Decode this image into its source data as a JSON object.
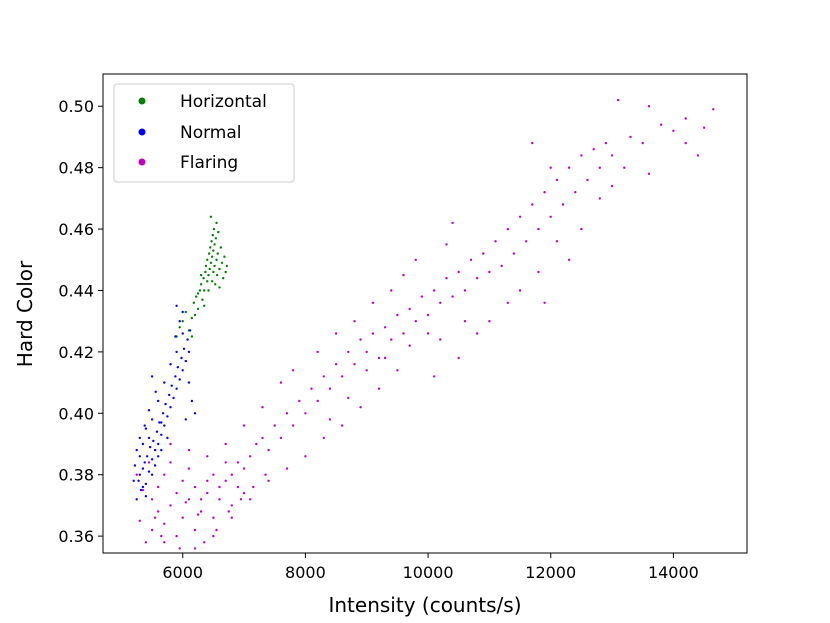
{
  "chart_data": {
    "type": "scatter",
    "title": "",
    "xlabel": "Intensity (counts/s)",
    "ylabel": "Hard Color",
    "xlim": [
      4700,
      15200
    ],
    "ylim": [
      0.3545,
      0.5105
    ],
    "xticks": [
      6000,
      8000,
      10000,
      12000,
      14000
    ],
    "xtick_labels": [
      "6000",
      "8000",
      "10000",
      "12000",
      "14000"
    ],
    "yticks": [
      0.36,
      0.38,
      0.4,
      0.42,
      0.44,
      0.46,
      0.48,
      0.5
    ],
    "ytick_labels": [
      "0.36",
      "0.38",
      "0.40",
      "0.42",
      "0.44",
      "0.46",
      "0.48",
      "0.50"
    ],
    "grid": false,
    "legend_position": "top-left",
    "series": [
      {
        "name": "Horizontal",
        "color": "#008000",
        "points": [
          [
            5900,
            0.425
          ],
          [
            5950,
            0.428
          ],
          [
            6000,
            0.43
          ],
          [
            6050,
            0.433
          ],
          [
            6100,
            0.427
          ],
          [
            6150,
            0.431
          ],
          [
            6180,
            0.436
          ],
          [
            6220,
            0.438
          ],
          [
            6250,
            0.434
          ],
          [
            6280,
            0.44
          ],
          [
            6300,
            0.442
          ],
          [
            6320,
            0.437
          ],
          [
            6340,
            0.444
          ],
          [
            6350,
            0.44
          ],
          [
            6370,
            0.446
          ],
          [
            6380,
            0.448
          ],
          [
            6400,
            0.443
          ],
          [
            6400,
            0.45
          ],
          [
            6420,
            0.445
          ],
          [
            6430,
            0.452
          ],
          [
            6440,
            0.447
          ],
          [
            6450,
            0.454
          ],
          [
            6460,
            0.449
          ],
          [
            6470,
            0.456
          ],
          [
            6480,
            0.451
          ],
          [
            6490,
            0.458
          ],
          [
            6500,
            0.446
          ],
          [
            6500,
            0.453
          ],
          [
            6510,
            0.46
          ],
          [
            6520,
            0.448
          ],
          [
            6520,
            0.455
          ],
          [
            6530,
            0.442
          ],
          [
            6540,
            0.457
          ],
          [
            6550,
            0.45
          ],
          [
            6560,
            0.445
          ],
          [
            6570,
            0.452
          ],
          [
            6580,
            0.459
          ],
          [
            6600,
            0.447
          ],
          [
            6620,
            0.454
          ],
          [
            6640,
            0.449
          ],
          [
            6660,
            0.444
          ],
          [
            6680,
            0.451
          ],
          [
            6700,
            0.446
          ],
          [
            6720,
            0.448
          ],
          [
            6460,
            0.464
          ],
          [
            6550,
            0.462
          ],
          [
            6350,
            0.435
          ],
          [
            6300,
            0.445
          ],
          [
            6420,
            0.44
          ],
          [
            6480,
            0.443
          ],
          [
            6600,
            0.441
          ],
          [
            6250,
            0.439
          ],
          [
            6150,
            0.425
          ],
          [
            6200,
            0.432
          ]
        ]
      },
      {
        "name": "Normal",
        "color": "#0000ff",
        "points": [
          [
            5250,
            0.372
          ],
          [
            5280,
            0.378
          ],
          [
            5300,
            0.38
          ],
          [
            5320,
            0.375
          ],
          [
            5350,
            0.382
          ],
          [
            5380,
            0.384
          ],
          [
            5400,
            0.377
          ],
          [
            5420,
            0.386
          ],
          [
            5450,
            0.381
          ],
          [
            5470,
            0.389
          ],
          [
            5500,
            0.385
          ],
          [
            5520,
            0.391
          ],
          [
            5550,
            0.388
          ],
          [
            5580,
            0.394
          ],
          [
            5600,
            0.39
          ],
          [
            5620,
            0.397
          ],
          [
            5650,
            0.393
          ],
          [
            5680,
            0.4
          ],
          [
            5700,
            0.396
          ],
          [
            5720,
            0.403
          ],
          [
            5750,
            0.399
          ],
          [
            5780,
            0.406
          ],
          [
            5800,
            0.402
          ],
          [
            5820,
            0.409
          ],
          [
            5850,
            0.405
          ],
          [
            5880,
            0.412
          ],
          [
            5900,
            0.408
          ],
          [
            5920,
            0.415
          ],
          [
            5950,
            0.411
          ],
          [
            5980,
            0.418
          ],
          [
            6000,
            0.414
          ],
          [
            6020,
            0.421
          ],
          [
            6050,
            0.417
          ],
          [
            6080,
            0.424
          ],
          [
            6100,
            0.42
          ],
          [
            6120,
            0.427
          ],
          [
            5880,
            0.425
          ],
          [
            5950,
            0.43
          ],
          [
            6000,
            0.433
          ],
          [
            5900,
            0.435
          ],
          [
            5400,
            0.395
          ],
          [
            5450,
            0.401
          ],
          [
            5300,
            0.386
          ],
          [
            5200,
            0.378
          ],
          [
            5220,
            0.383
          ],
          [
            5350,
            0.39
          ],
          [
            5500,
            0.398
          ],
          [
            5600,
            0.404
          ],
          [
            5700,
            0.41
          ],
          [
            5800,
            0.416
          ],
          [
            5900,
            0.42
          ],
          [
            6000,
            0.426
          ],
          [
            5500,
            0.38
          ],
          [
            5550,
            0.383
          ],
          [
            5600,
            0.386
          ],
          [
            5650,
            0.388
          ],
          [
            5350,
            0.376
          ],
          [
            5400,
            0.373
          ],
          [
            5250,
            0.388
          ],
          [
            5300,
            0.392
          ],
          [
            6150,
            0.404
          ],
          [
            6200,
            0.4
          ],
          [
            6100,
            0.41
          ],
          [
            6050,
            0.398
          ],
          [
            5750,
            0.392
          ],
          [
            5650,
            0.397
          ],
          [
            5450,
            0.392
          ],
          [
            5380,
            0.396
          ],
          [
            5560,
            0.407
          ],
          [
            5500,
            0.412
          ]
        ]
      },
      {
        "name": "Flaring",
        "color": "#c000c0",
        "points": [
          [
            5300,
            0.365
          ],
          [
            5400,
            0.358
          ],
          [
            5500,
            0.362
          ],
          [
            5600,
            0.368
          ],
          [
            5700,
            0.364
          ],
          [
            5800,
            0.37
          ],
          [
            5900,
            0.36
          ],
          [
            6000,
            0.366
          ],
          [
            6100,
            0.372
          ],
          [
            6200,
            0.362
          ],
          [
            6300,
            0.368
          ],
          [
            6400,
            0.374
          ],
          [
            6500,
            0.366
          ],
          [
            6600,
            0.372
          ],
          [
            6700,
            0.378
          ],
          [
            6800,
            0.37
          ],
          [
            6900,
            0.376
          ],
          [
            7000,
            0.382
          ],
          [
            5500,
            0.372
          ],
          [
            5600,
            0.376
          ],
          [
            5700,
            0.38
          ],
          [
            5800,
            0.384
          ],
          [
            5900,
            0.374
          ],
          [
            6000,
            0.378
          ],
          [
            6100,
            0.382
          ],
          [
            6200,
            0.376
          ],
          [
            6300,
            0.372
          ],
          [
            6400,
            0.378
          ],
          [
            6500,
            0.38
          ],
          [
            6600,
            0.376
          ],
          [
            6700,
            0.384
          ],
          [
            6800,
            0.38
          ],
          [
            6900,
            0.384
          ],
          [
            7000,
            0.374
          ],
          [
            7100,
            0.386
          ],
          [
            7200,
            0.39
          ],
          [
            7300,
            0.392
          ],
          [
            7400,
            0.388
          ],
          [
            7500,
            0.396
          ],
          [
            7600,
            0.392
          ],
          [
            7700,
            0.4
          ],
          [
            7800,
            0.396
          ],
          [
            7900,
            0.404
          ],
          [
            8000,
            0.4
          ],
          [
            8100,
            0.408
          ],
          [
            8200,
            0.404
          ],
          [
            8300,
            0.412
          ],
          [
            8400,
            0.408
          ],
          [
            8500,
            0.416
          ],
          [
            8600,
            0.412
          ],
          [
            8700,
            0.42
          ],
          [
            8800,
            0.416
          ],
          [
            8900,
            0.424
          ],
          [
            9000,
            0.42
          ],
          [
            9100,
            0.426
          ],
          [
            9200,
            0.418
          ],
          [
            9300,
            0.428
          ],
          [
            9400,
            0.424
          ],
          [
            9500,
            0.432
          ],
          [
            9600,
            0.426
          ],
          [
            9700,
            0.434
          ],
          [
            9800,
            0.43
          ],
          [
            9900,
            0.438
          ],
          [
            10000,
            0.432
          ],
          [
            10100,
            0.44
          ],
          [
            10200,
            0.436
          ],
          [
            10300,
            0.444
          ],
          [
            10400,
            0.438
          ],
          [
            10500,
            0.446
          ],
          [
            10600,
            0.44
          ],
          [
            10700,
            0.45
          ],
          [
            10800,
            0.444
          ],
          [
            10900,
            0.452
          ],
          [
            11000,
            0.446
          ],
          [
            11100,
            0.456
          ],
          [
            11200,
            0.448
          ],
          [
            11300,
            0.46
          ],
          [
            11400,
            0.452
          ],
          [
            11500,
            0.464
          ],
          [
            11600,
            0.456
          ],
          [
            11700,
            0.468
          ],
          [
            11800,
            0.46
          ],
          [
            11900,
            0.472
          ],
          [
            12000,
            0.464
          ],
          [
            12100,
            0.476
          ],
          [
            12200,
            0.468
          ],
          [
            12300,
            0.48
          ],
          [
            12400,
            0.472
          ],
          [
            12500,
            0.484
          ],
          [
            12600,
            0.476
          ],
          [
            12700,
            0.486
          ],
          [
            12800,
            0.48
          ],
          [
            12900,
            0.488
          ],
          [
            13000,
            0.484
          ],
          [
            13100,
            0.502
          ],
          [
            13300,
            0.49
          ],
          [
            13500,
            0.488
          ],
          [
            13600,
            0.5
          ],
          [
            13800,
            0.494
          ],
          [
            14000,
            0.492
          ],
          [
            14200,
            0.496
          ],
          [
            14400,
            0.484
          ],
          [
            14500,
            0.493
          ],
          [
            14650,
            0.499
          ],
          [
            10400,
            0.462
          ],
          [
            10300,
            0.455
          ],
          [
            9800,
            0.45
          ],
          [
            9600,
            0.445
          ],
          [
            10200,
            0.424
          ],
          [
            10500,
            0.418
          ],
          [
            10100,
            0.412
          ],
          [
            9500,
            0.414
          ],
          [
            9200,
            0.408
          ],
          [
            8900,
            0.402
          ],
          [
            8600,
            0.396
          ],
          [
            8300,
            0.392
          ],
          [
            8000,
            0.386
          ],
          [
            7700,
            0.382
          ],
          [
            7400,
            0.378
          ],
          [
            7100,
            0.372
          ],
          [
            6800,
            0.366
          ],
          [
            6500,
            0.36
          ],
          [
            6200,
            0.356
          ],
          [
            5700,
            0.358
          ],
          [
            5350,
            0.375
          ],
          [
            5250,
            0.38
          ],
          [
            11700,
            0.488
          ],
          [
            12000,
            0.48
          ],
          [
            11500,
            0.44
          ],
          [
            11900,
            0.436
          ],
          [
            12300,
            0.45
          ],
          [
            12800,
            0.47
          ],
          [
            13200,
            0.48
          ],
          [
            13600,
            0.478
          ],
          [
            11000,
            0.43
          ],
          [
            10800,
            0.426
          ],
          [
            7600,
            0.41
          ],
          [
            7800,
            0.414
          ],
          [
            8200,
            0.42
          ],
          [
            8500,
            0.426
          ],
          [
            8800,
            0.43
          ],
          [
            9100,
            0.436
          ],
          [
            9400,
            0.44
          ],
          [
            7300,
            0.402
          ],
          [
            7000,
            0.396
          ],
          [
            6700,
            0.39
          ],
          [
            6400,
            0.386
          ],
          [
            6100,
            0.388
          ],
          [
            5800,
            0.39
          ],
          [
            8700,
            0.405
          ],
          [
            8400,
            0.398
          ],
          [
            9000,
            0.414
          ],
          [
            9300,
            0.418
          ],
          [
            9700,
            0.422
          ],
          [
            10000,
            0.426
          ],
          [
            10600,
            0.43
          ],
          [
            11300,
            0.436
          ],
          [
            12500,
            0.46
          ],
          [
            12100,
            0.456
          ],
          [
            11800,
            0.446
          ],
          [
            13000,
            0.474
          ],
          [
            14200,
            0.488
          ],
          [
            6350,
            0.358
          ],
          [
            6550,
            0.362
          ],
          [
            6750,
            0.368
          ],
          [
            6950,
            0.372
          ],
          [
            7150,
            0.376
          ],
          [
            7350,
            0.38
          ],
          [
            5450,
            0.384
          ],
          [
            5550,
            0.366
          ],
          [
            5650,
            0.36
          ],
          [
            5950,
            0.356
          ],
          [
            6050,
            0.371
          ],
          [
            6250,
            0.367
          ]
        ]
      }
    ]
  }
}
